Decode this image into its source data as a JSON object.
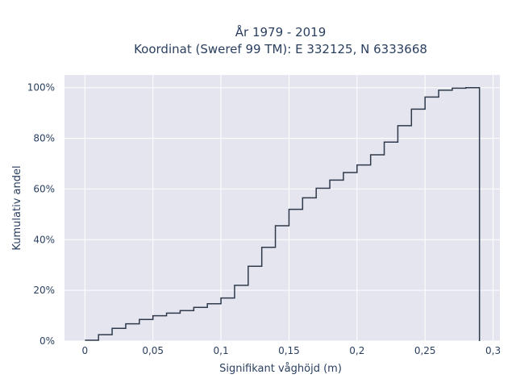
{
  "chart_data": {
    "type": "line",
    "subtype": "cumulative-step-histogram",
    "title_line1": "År 1979 - 2019",
    "title_line2": "Koordinat (Sweref 99 TM): E 332125, N 6333668",
    "xlabel": "Signifikant våghöjd (m)",
    "ylabel": "Kumulativ andel",
    "xlim": [
      -0.015,
      0.305
    ],
    "ylim": [
      0,
      1.05
    ],
    "x_ticks": [
      0,
      0.05,
      0.1,
      0.15,
      0.2,
      0.25,
      0.3
    ],
    "x_tick_labels": [
      "0",
      "0,05",
      "0,1",
      "0,15",
      "0,2",
      "0,25",
      "0,3"
    ],
    "y_ticks": [
      0,
      0.2,
      0.4,
      0.6,
      0.8,
      1.0
    ],
    "y_tick_labels": [
      "0%",
      "20%",
      "40%",
      "60%",
      "80%",
      "100%"
    ],
    "grid": true,
    "line_color": "#2e3a4b",
    "plot_bg": "#e5e5ef",
    "bins_x": [
      0,
      0.01,
      0.02,
      0.03,
      0.04,
      0.05,
      0.06,
      0.07,
      0.08,
      0.09,
      0.1,
      0.11,
      0.12,
      0.13,
      0.14,
      0.15,
      0.16,
      0.17,
      0.18,
      0.19,
      0.2,
      0.21,
      0.22,
      0.23,
      0.24,
      0.25,
      0.26,
      0.27,
      0.28,
      0.29
    ],
    "cumulative_y": [
      0.003,
      0.025,
      0.05,
      0.068,
      0.085,
      0.1,
      0.11,
      0.12,
      0.133,
      0.147,
      0.17,
      0.22,
      0.295,
      0.37,
      0.455,
      0.52,
      0.565,
      0.603,
      0.635,
      0.665,
      0.695,
      0.735,
      0.785,
      0.85,
      0.915,
      0.963,
      0.99,
      0.998,
      1.0
    ]
  }
}
